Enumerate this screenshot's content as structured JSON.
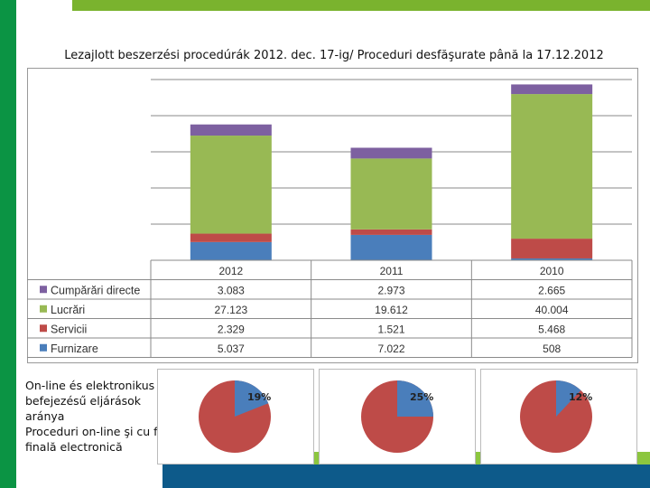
{
  "title": "Lezajlott beszerzési procedúrák 2012. dec. 17-ig/ Proceduri desfăşurate până la 17.12.2012",
  "colors": {
    "furnizare": "#4a7ebb",
    "servicii": "#be4b48",
    "lucrari": "#98b954",
    "cumparari": "#7d60a0"
  },
  "chart_data": [
    {
      "type": "bar",
      "stacked": true,
      "categories": [
        "2012",
        "2011",
        "2010"
      ],
      "series": [
        {
          "name": "Furnizare",
          "values": [
            5037,
            7022,
            508
          ],
          "labels": [
            "5.037",
            "7.022",
            "508"
          ]
        },
        {
          "name": "Servicii",
          "values": [
            2329,
            1521,
            5468
          ],
          "labels": [
            "2.329",
            "1.521",
            "5.468"
          ]
        },
        {
          "name": "Lucrări",
          "values": [
            27123,
            19612,
            40004
          ],
          "labels": [
            "27.123",
            "19.612",
            "40.004"
          ]
        },
        {
          "name": "Cumpărări directe",
          "values": [
            3083,
            2973,
            2665
          ],
          "labels": [
            "3.083",
            "2.973",
            "2.665"
          ]
        }
      ],
      "ylim": [
        0,
        50000
      ],
      "grid": true,
      "data_table": true
    },
    {
      "type": "pie",
      "charts": [
        {
          "share": 0.19,
          "label": "19%"
        },
        {
          "share": 0.25,
          "label": "25%"
        },
        {
          "share": 0.12,
          "label": "12%"
        }
      ]
    }
  ],
  "pie_caption": {
    "line1": "On-line és elektronikus",
    "line2": "befejezésű eljárások",
    "line3": " aránya",
    "line4": "Proceduri on-line şi cu faza",
    "line5": "finală electronică"
  }
}
